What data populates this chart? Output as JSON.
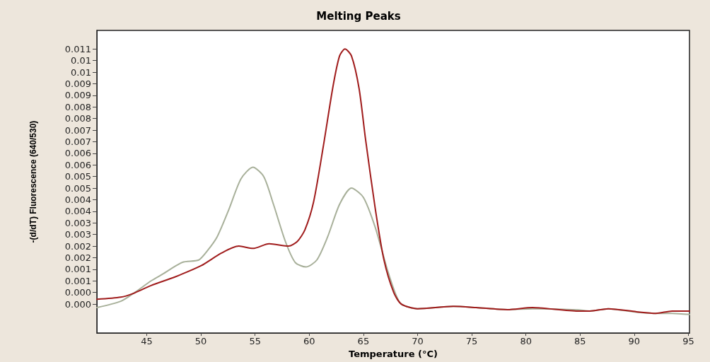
{
  "chart_data": {
    "type": "line",
    "title": "Melting Peaks",
    "xlabel": "Temperature (°C)",
    "ylabel": "-(d/dT) Fluorescence (640/530)",
    "xlim": [
      40.4,
      95.1
    ],
    "xticks": [
      45,
      50,
      55,
      60,
      65,
      70,
      75,
      80,
      85,
      90,
      95
    ],
    "ylim": [
      -0.00125,
      0.0118
    ],
    "yticks": [
      {
        "value": 0,
        "label": "0.000"
      },
      {
        "value": 0.0005,
        "label": "0.000"
      },
      {
        "value": 0.001,
        "label": "0.001"
      },
      {
        "value": 0.0015,
        "label": "0.001"
      },
      {
        "value": 0.002,
        "label": "0.002"
      },
      {
        "value": 0.0025,
        "label": "0.002"
      },
      {
        "value": 0.003,
        "label": "0.003"
      },
      {
        "value": 0.0035,
        "label": "0.003"
      },
      {
        "value": 0.004,
        "label": "0.004"
      },
      {
        "value": 0.0045,
        "label": "0.004"
      },
      {
        "value": 0.005,
        "label": "0.005"
      },
      {
        "value": 0.0055,
        "label": "0.005"
      },
      {
        "value": 0.006,
        "label": "0.006"
      },
      {
        "value": 0.0065,
        "label": "0.006"
      },
      {
        "value": 0.007,
        "label": "0.007"
      },
      {
        "value": 0.0075,
        "label": "0.007"
      },
      {
        "value": 0.008,
        "label": "0.008"
      },
      {
        "value": 0.0085,
        "label": "0.008"
      },
      {
        "value": 0.009,
        "label": "0.009"
      },
      {
        "value": 0.0095,
        "label": "0.009"
      },
      {
        "value": 0.01,
        "label": "0.01"
      },
      {
        "value": 0.0105,
        "label": "0.01"
      },
      {
        "value": 0.011,
        "label": "0.011"
      }
    ],
    "grid": false,
    "marker": "none",
    "line_style": "solid",
    "series": [
      {
        "color": "#a8b09a",
        "x": [
          40.4,
          42.6,
          43.9,
          45.4,
          46.5,
          48.3,
          49.8,
          50.6,
          51.5,
          52.6,
          53.7,
          54.8,
          55.8,
          56.7,
          57.8,
          58.7,
          59.7,
          60.7,
          61.7,
          62.8,
          63.9,
          65.0,
          66.1,
          67.2,
          68.0,
          68.5,
          70.0,
          73.3,
          75.4,
          78.3,
          80.6,
          84.8,
          85.9,
          87.6,
          90.2,
          92.0,
          93.5,
          95.1
        ],
        "values": [
          -0.00015,
          0.00012,
          0.0005,
          0.001,
          0.0013,
          0.0018,
          0.0019,
          0.0023,
          0.0029,
          0.0041,
          0.0054,
          0.0059,
          0.0055,
          0.0043,
          0.0027,
          0.0018,
          0.0016,
          0.0019,
          0.0029,
          0.0043,
          0.005,
          0.0046,
          0.0033,
          0.0015,
          0.0004,
          0,
          -0.0002,
          -0.0001,
          -0.00015,
          -0.00024,
          -0.0002,
          -0.00025,
          -0.0003,
          -0.0002,
          -0.00035,
          -0.0004,
          -0.0004,
          -0.00045
        ]
      },
      {
        "color": "#a01c1c",
        "x": [
          40.4,
          42.6,
          43.7,
          45.4,
          47.6,
          50.0,
          51.9,
          53.5,
          54.8,
          56.3,
          58.1,
          58.9,
          59.6,
          60.4,
          61.3,
          62.2,
          62.8,
          63.3,
          63.9,
          64.6,
          65.2,
          66.1,
          66.9,
          67.8,
          68.5,
          70.0,
          73.3,
          75.4,
          78.3,
          80.6,
          84.8,
          85.9,
          87.6,
          90.2,
          92.0,
          93.5,
          95.1
        ],
        "values": [
          0.00021,
          0.0003,
          0.00045,
          0.0008,
          0.00117,
          0.00165,
          0.0022,
          0.0025,
          0.0024,
          0.0026,
          0.0025,
          0.0027,
          0.0032,
          0.0044,
          0.0068,
          0.0094,
          0.0107,
          0.011,
          0.0107,
          0.0093,
          0.0071,
          0.0041,
          0.0019,
          0.0005,
          0,
          -0.0002,
          -0.0001,
          -0.00015,
          -0.00024,
          -0.00015,
          -0.0003,
          -0.0003,
          -0.0002,
          -0.00033,
          -0.0004,
          -0.0003,
          -0.0003
        ]
      }
    ]
  }
}
